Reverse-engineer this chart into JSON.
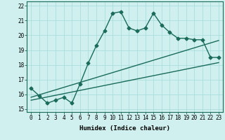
{
  "xlabel": "Humidex (Indice chaleur)",
  "ylabel": "",
  "xlim": [
    -0.5,
    23.5
  ],
  "ylim": [
    14.8,
    22.3
  ],
  "yticks": [
    15,
    16,
    17,
    18,
    19,
    20,
    21,
    22
  ],
  "xticks": [
    0,
    1,
    2,
    3,
    4,
    5,
    6,
    7,
    8,
    9,
    10,
    11,
    12,
    13,
    14,
    15,
    16,
    17,
    18,
    19,
    20,
    21,
    22,
    23
  ],
  "bg_color": "#cff0ee",
  "grid_color": "#aadddd",
  "line_color": "#1a6b5a",
  "line1_x": [
    0,
    1,
    2,
    3,
    4,
    5,
    6,
    7,
    8,
    9,
    10,
    11,
    12,
    13,
    14,
    15,
    16,
    17,
    18,
    19,
    20,
    21,
    22,
    23
  ],
  "line1_y": [
    16.4,
    15.9,
    15.4,
    15.6,
    15.8,
    15.4,
    16.7,
    18.1,
    19.3,
    20.3,
    21.5,
    21.6,
    20.5,
    20.3,
    20.5,
    21.5,
    20.7,
    20.2,
    19.8,
    19.8,
    19.7,
    19.7,
    18.5,
    18.5
  ],
  "line2_x": [
    0,
    23
  ],
  "line2_y": [
    15.8,
    19.65
  ],
  "line3_x": [
    0,
    23
  ],
  "line3_y": [
    15.6,
    18.15
  ],
  "marker": "D",
  "marker_size": 2.5,
  "linewidth": 1.0,
  "tick_fontsize": 5.5,
  "xlabel_fontsize": 6.5
}
